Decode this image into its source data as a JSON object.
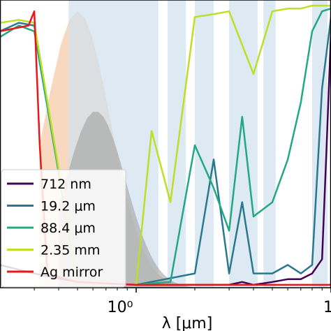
{
  "chart_data": {
    "type": "line",
    "title": "",
    "xlabel": "λ [μm]",
    "ylabel": "",
    "x_scale": "log",
    "xlim": [
      0.2,
      10
    ],
    "ylim": [
      0,
      1
    ],
    "x_tick_labels": [
      "10⁰",
      "1"
    ],
    "grid": false,
    "legend_position": "lower-left",
    "background_bands": [
      {
        "name": "solar spectrum",
        "color": "#f6cfb0"
      },
      {
        "name": "atmospheric transmission",
        "color": "#cfe1ef"
      },
      {
        "name": "thermal emission",
        "color": "#9a9a9a"
      }
    ],
    "series": [
      {
        "name": "712 nm",
        "color": "#440154",
        "x": [
          0.2,
          0.3,
          0.5,
          1.0,
          2.0,
          3.0,
          3.5,
          4.0,
          5.0,
          6.0,
          7.0,
          8.0,
          9.0,
          9.5,
          10.0
        ],
        "y": [
          0.08,
          0.05,
          0.02,
          0.01,
          0.01,
          0.01,
          0.02,
          0.01,
          0.02,
          0.03,
          0.03,
          0.05,
          0.1,
          0.5,
          0.9
        ]
      },
      {
        "name": "19.2 μm",
        "color": "#2a788e",
        "x": [
          0.2,
          0.25,
          0.3,
          0.5,
          1.0,
          2.0,
          2.5,
          3.0,
          3.5,
          4.0,
          5.0,
          6.0,
          7.0,
          8.0,
          9.0,
          10.0
        ],
        "y": [
          0.9,
          0.93,
          0.92,
          0.02,
          0.01,
          0.05,
          0.45,
          0.05,
          0.3,
          0.05,
          0.05,
          0.08,
          0.05,
          0.08,
          0.7,
          0.95
        ]
      },
      {
        "name": "88.4 μm",
        "color": "#22a884",
        "x": [
          0.2,
          0.25,
          0.3,
          0.5,
          1.0,
          1.5,
          2.0,
          2.5,
          3.0,
          3.5,
          4.0,
          5.0,
          6.0,
          7.0,
          8.0,
          9.0,
          10.0
        ],
        "y": [
          0.88,
          0.92,
          0.9,
          0.02,
          0.01,
          0.02,
          0.5,
          0.35,
          0.2,
          0.6,
          0.25,
          0.3,
          0.45,
          0.65,
          0.9,
          0.97,
          0.98
        ]
      },
      {
        "name": "2.35 mm",
        "color": "#bddf26",
        "x": [
          0.2,
          0.25,
          0.3,
          0.5,
          1.0,
          1.2,
          1.5,
          2.0,
          2.5,
          3.0,
          4.0,
          5.0,
          6.0,
          7.0,
          8.0,
          10.0
        ],
        "y": [
          0.93,
          0.94,
          0.93,
          0.02,
          0.01,
          0.55,
          0.3,
          0.95,
          0.96,
          0.97,
          0.75,
          0.97,
          0.98,
          0.98,
          0.99,
          0.99
        ]
      },
      {
        "name": "Ag mirror",
        "color": "#e8171a",
        "x": [
          0.2,
          0.28,
          0.3,
          0.32,
          0.35,
          0.5,
          1.0,
          2.0,
          5.0,
          10.0
        ],
        "y": [
          0.9,
          0.92,
          0.97,
          0.5,
          0.05,
          0.02,
          0.01,
          0.01,
          0.01,
          0.01
        ]
      }
    ]
  }
}
